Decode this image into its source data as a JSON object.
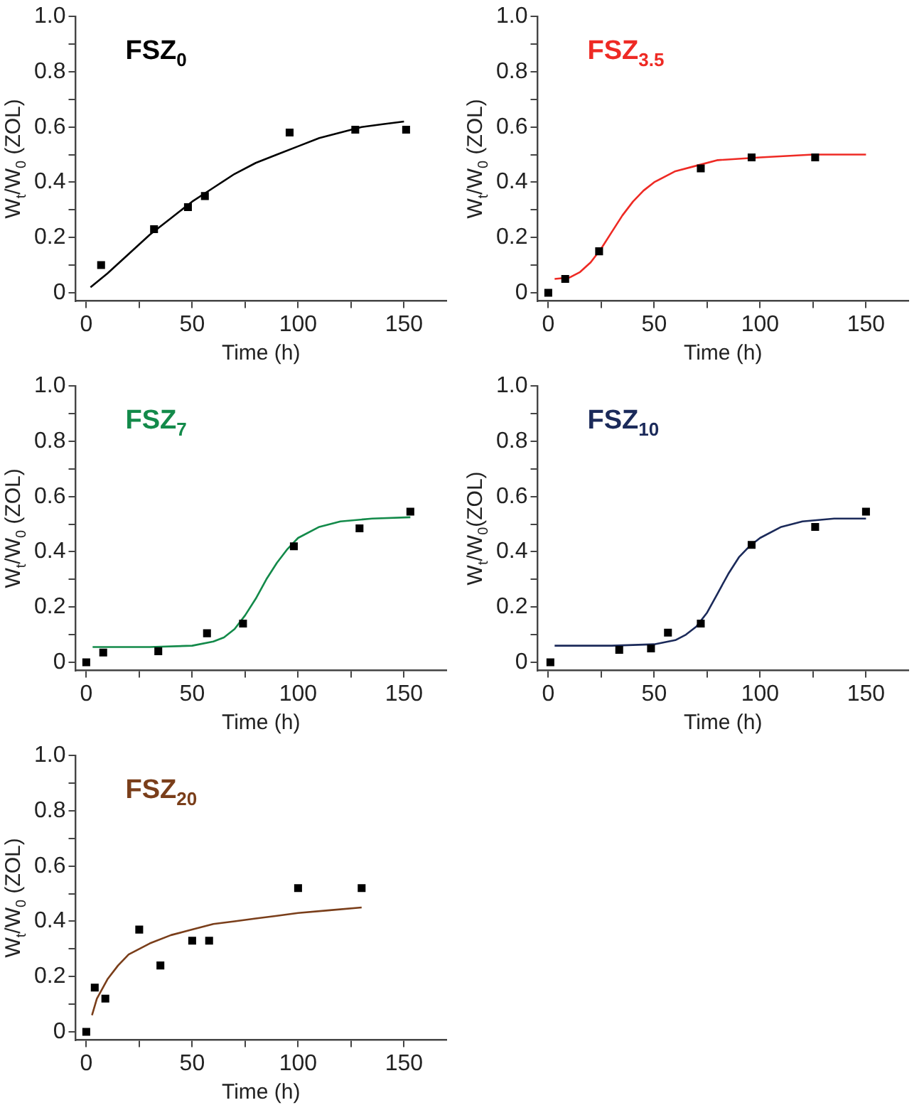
{
  "chart_data": [
    {
      "type": "scatter",
      "title": "FSZ$_{0}$",
      "xlabel": "Time (h)",
      "ylabel": "W$_{t}$/W$_{0}$ (ZOL)",
      "xlim": [
        -5,
        170
      ],
      "ylim": [
        -0.03,
        1.0
      ],
      "xticks": [
        0,
        {
          "value": 25,
          "label": null
        },
        50,
        {
          "value": 75,
          "label": null
        },
        100,
        {
          "value": 125,
          "label": null
        },
        150
      ],
      "yticks": [
        0,
        {
          "value": 0.1,
          "label": null
        },
        0.2,
        {
          "value": 0.3,
          "label": null
        },
        0.4,
        {
          "value": 0.5,
          "label": null
        },
        0.6,
        {
          "value": 0.7,
          "label": null
        },
        0.8,
        {
          "value": 0.9,
          "label": null
        },
        {
          "value": 1.0,
          "label": "1.0"
        }
      ],
      "legend": false,
      "grid": false,
      "series": [
        {
          "type": "scatter",
          "marker": "square",
          "color": "#000000",
          "x": [
            7,
            32,
            48,
            56,
            96,
            127,
            151
          ],
          "values": [
            0.1,
            0.23,
            0.31,
            0.35,
            0.58,
            0.59,
            0.59
          ]
        },
        {
          "type": "line",
          "marker": "none",
          "line_style": "solid",
          "color": "#000000",
          "x": [
            2,
            10,
            20,
            30,
            40,
            50,
            60,
            70,
            80,
            90,
            100,
            110,
            120,
            130,
            140,
            150
          ],
          "values": [
            0.02,
            0.07,
            0.14,
            0.21,
            0.27,
            0.33,
            0.38,
            0.43,
            0.47,
            0.5,
            0.53,
            0.56,
            0.58,
            0.6,
            0.61,
            0.62
          ]
        }
      ]
    },
    {
      "type": "scatter",
      "title": "FSZ$_{3.5}$",
      "xlabel": "Time (h)",
      "ylabel": "W$_{t}$/W$_{0}$ (ZOL)",
      "xlim": [
        -5,
        170
      ],
      "ylim": [
        -0.03,
        1.0
      ],
      "xticks": [
        0,
        {
          "value": 25,
          "label": null
        },
        50,
        {
          "value": 75,
          "label": null
        },
        100,
        {
          "value": 125,
          "label": null
        },
        150
      ],
      "yticks": [
        0,
        {
          "value": 0.1,
          "label": null
        },
        0.2,
        {
          "value": 0.3,
          "label": null
        },
        0.4,
        {
          "value": 0.5,
          "label": null
        },
        0.6,
        {
          "value": 0.7,
          "label": null
        },
        0.8,
        {
          "value": 0.9,
          "label": null
        },
        {
          "value": 1.0,
          "label": "1.0"
        }
      ],
      "legend": false,
      "grid": false,
      "series": [
        {
          "type": "scatter",
          "marker": "square",
          "color": "#000000",
          "x": [
            0,
            8,
            24,
            72,
            96,
            126
          ],
          "values": [
            0,
            0.05,
            0.15,
            0.45,
            0.49,
            0.49
          ]
        },
        {
          "type": "line",
          "marker": "none",
          "line_style": "solid",
          "color": "#ee2a24",
          "x": [
            3,
            10,
            15,
            20,
            25,
            30,
            35,
            40,
            45,
            50,
            60,
            70,
            80,
            100,
            125,
            150
          ],
          "values": [
            0.05,
            0.055,
            0.075,
            0.11,
            0.16,
            0.22,
            0.28,
            0.33,
            0.37,
            0.4,
            0.44,
            0.46,
            0.48,
            0.49,
            0.5,
            0.5
          ]
        }
      ]
    },
    {
      "type": "scatter",
      "title": "FSZ$_{7}$",
      "xlabel": "Time (h)",
      "ylabel": "W$_{t}$/W$_{0}$ (ZOL)",
      "xlim": [
        -5,
        170
      ],
      "ylim": [
        -0.03,
        1.0
      ],
      "xticks": [
        0,
        {
          "value": 25,
          "label": null
        },
        50,
        {
          "value": 75,
          "label": null
        },
        100,
        {
          "value": 125,
          "label": null
        },
        150
      ],
      "yticks": [
        0,
        {
          "value": 0.1,
          "label": null
        },
        0.2,
        {
          "value": 0.3,
          "label": null
        },
        0.4,
        {
          "value": 0.5,
          "label": null
        },
        0.6,
        {
          "value": 0.7,
          "label": null
        },
        0.8,
        {
          "value": 0.9,
          "label": null
        },
        {
          "value": 1.0,
          "label": "1.0"
        }
      ],
      "legend": false,
      "grid": false,
      "series": [
        {
          "type": "scatter",
          "marker": "square",
          "color": "#000000",
          "x": [
            0,
            8,
            34,
            57,
            74,
            98,
            129,
            153
          ],
          "values": [
            0,
            0.035,
            0.04,
            0.105,
            0.14,
            0.42,
            0.485,
            0.545
          ]
        },
        {
          "type": "line",
          "marker": "none",
          "line_style": "solid",
          "color": "#138a4a",
          "x": [
            3,
            30,
            50,
            60,
            65,
            70,
            75,
            80,
            85,
            90,
            95,
            100,
            110,
            120,
            135,
            153
          ],
          "values": [
            0.055,
            0.055,
            0.06,
            0.075,
            0.09,
            0.12,
            0.17,
            0.23,
            0.3,
            0.36,
            0.41,
            0.45,
            0.49,
            0.51,
            0.52,
            0.525
          ]
        }
      ]
    },
    {
      "type": "scatter",
      "title": "FSZ$_{10}$",
      "xlabel": "Time (h)",
      "ylabel": "W$_{t}$/W$_{0}$(ZOL)",
      "xlim": [
        -5,
        170
      ],
      "ylim": [
        -0.03,
        1.0
      ],
      "xticks": [
        0,
        {
          "value": 25,
          "label": null
        },
        50,
        {
          "value": 75,
          "label": null
        },
        100,
        {
          "value": 125,
          "label": null
        },
        150
      ],
      "yticks": [
        0,
        {
          "value": 0.1,
          "label": null
        },
        0.2,
        {
          "value": 0.3,
          "label": null
        },
        0.4,
        {
          "value": 0.5,
          "label": null
        },
        0.6,
        {
          "value": 0.7,
          "label": null
        },
        0.8,
        {
          "value": 0.9,
          "label": null
        },
        {
          "value": 1.0,
          "label": "1.0"
        }
      ],
      "legend": false,
      "grid": false,
      "series": [
        {
          "type": "scatter",
          "marker": "square",
          "color": "#000000",
          "x": [
            1,
            33.5,
            48.5,
            56.5,
            72,
            96,
            126,
            150
          ],
          "values": [
            0,
            0.045,
            0.05,
            0.107,
            0.14,
            0.425,
            0.49,
            0.545
          ]
        },
        {
          "type": "line",
          "marker": "none",
          "line_style": "solid",
          "color": "#1b2a5a",
          "x": [
            3,
            30,
            50,
            60,
            65,
            70,
            75,
            80,
            85,
            90,
            95,
            100,
            110,
            120,
            135,
            150
          ],
          "values": [
            0.06,
            0.06,
            0.065,
            0.08,
            0.1,
            0.13,
            0.18,
            0.25,
            0.32,
            0.38,
            0.42,
            0.45,
            0.49,
            0.51,
            0.52,
            0.52
          ]
        }
      ]
    },
    {
      "type": "scatter",
      "title": "FSZ$_{20}$",
      "xlabel": "Time (h)",
      "ylabel": "W$_{t}$/W$_{0}$ (ZOL)",
      "xlim": [
        -5,
        170
      ],
      "ylim": [
        -0.03,
        1.0
      ],
      "xticks": [
        0,
        {
          "value": 25,
          "label": null
        },
        50,
        {
          "value": 75,
          "label": null
        },
        100,
        {
          "value": 125,
          "label": null
        },
        150
      ],
      "yticks": [
        0,
        {
          "value": 0.1,
          "label": null
        },
        0.2,
        {
          "value": 0.3,
          "label": null
        },
        0.4,
        {
          "value": 0.5,
          "label": null
        },
        0.6,
        {
          "value": 0.7,
          "label": null
        },
        0.8,
        {
          "value": 0.9,
          "label": null
        },
        {
          "value": 1.0,
          "label": "1.0"
        }
      ],
      "legend": false,
      "grid": false,
      "series": [
        {
          "type": "scatter",
          "marker": "square",
          "color": "#000000",
          "x": [
            0,
            4,
            9,
            25,
            35,
            50,
            58,
            100,
            130
          ],
          "values": [
            0,
            0.16,
            0.12,
            0.37,
            0.24,
            0.33,
            0.33,
            0.52,
            0.52
          ]
        },
        {
          "type": "line",
          "marker": "none",
          "line_style": "solid",
          "color": "#7a3e1a",
          "x": [
            2.7,
            5,
            10,
            15,
            20,
            30,
            40,
            50,
            60,
            70,
            80,
            90,
            100,
            115,
            130
          ],
          "values": [
            0.06,
            0.12,
            0.19,
            0.24,
            0.28,
            0.32,
            0.35,
            0.37,
            0.39,
            0.4,
            0.41,
            0.42,
            0.43,
            0.44,
            0.45
          ]
        }
      ]
    }
  ]
}
